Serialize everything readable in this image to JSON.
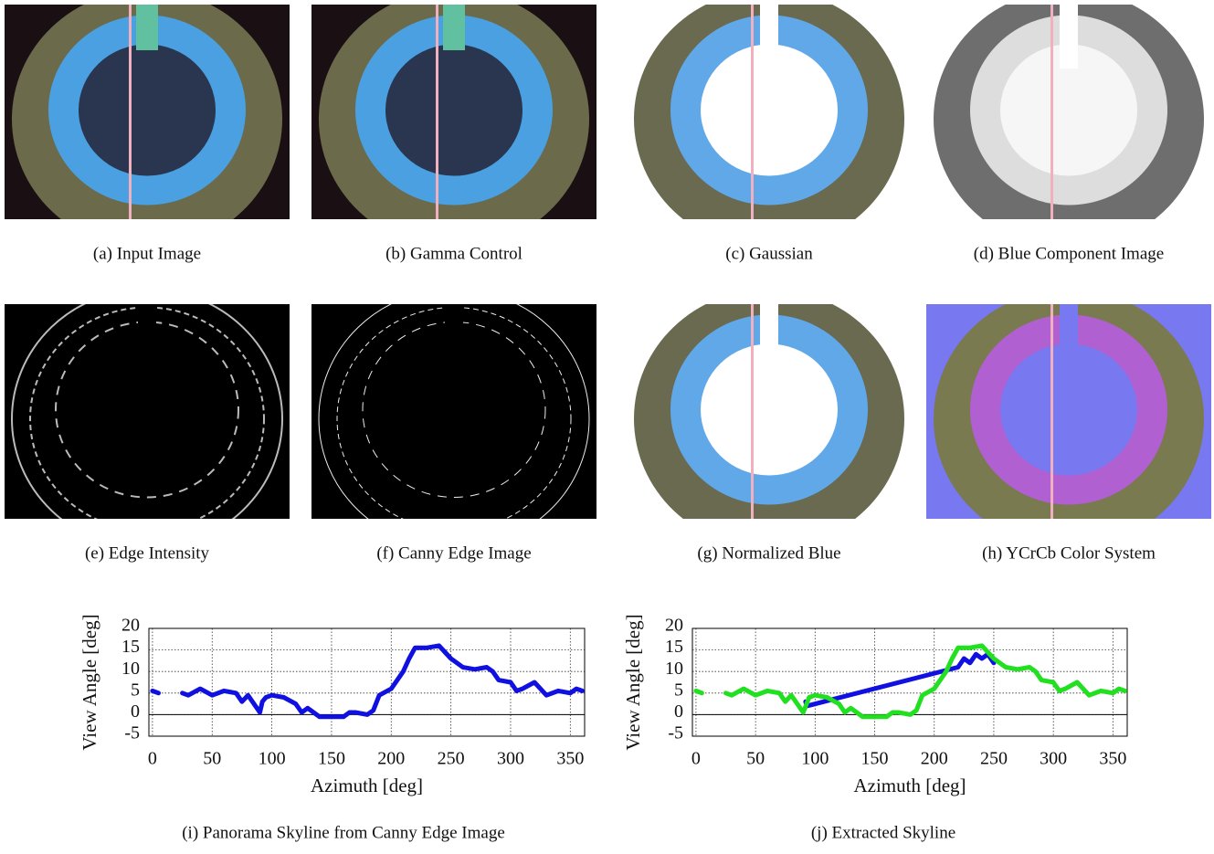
{
  "figures": [
    {
      "caption": "(a) Input Image"
    },
    {
      "caption": "(b) Gamma Control"
    },
    {
      "caption": "(c) Gaussian"
    },
    {
      "caption": "(d) Blue Component Image"
    },
    {
      "caption": "(e) Edge Intensity"
    },
    {
      "caption": "(f) Canny Edge Image"
    },
    {
      "caption": "(g) Normalized Blue"
    },
    {
      "caption": "(h) YCrCb Color System"
    }
  ],
  "chart_data": [
    {
      "type": "scatter",
      "caption": "(i) Panorama Skyline from Canny Edge Image",
      "x_label": "Azimuth [deg]",
      "y_label": "View Angle [deg]",
      "xlim": [
        -3,
        362
      ],
      "ylim": [
        -5,
        20
      ],
      "xticks": [
        0,
        50,
        100,
        150,
        200,
        250,
        300,
        350
      ],
      "yticks": [
        -5,
        0,
        5,
        10,
        15,
        20
      ],
      "grid": true,
      "series": [
        {
          "color": "#1010e0",
          "x": [
            0,
            5,
            15,
            25,
            30,
            40,
            50,
            60,
            70,
            75,
            80,
            90,
            92,
            95,
            100,
            110,
            120,
            125,
            130,
            140,
            150,
            160,
            165,
            170,
            180,
            185,
            190,
            200,
            210,
            215,
            220,
            230,
            240,
            245,
            250,
            260,
            270,
            280,
            285,
            290,
            300,
            305,
            310,
            320,
            330,
            340,
            350,
            355,
            360
          ],
          "values": [
            5.5,
            5,
            null,
            5,
            4.5,
            6,
            4.5,
            5.5,
            5,
            3,
            4.5,
            0.5,
            3,
            4,
            4.5,
            4,
            2.5,
            0.5,
            1.5,
            -0.5,
            -0.5,
            -0.5,
            0.5,
            0.5,
            0,
            1,
            4.5,
            6,
            10,
            13,
            15.5,
            15.5,
            16,
            14.5,
            13,
            11,
            10.5,
            11,
            10,
            8,
            7.5,
            5.5,
            6,
            7.5,
            4.5,
            5.5,
            5,
            6,
            5.5
          ]
        }
      ]
    },
    {
      "type": "scatter",
      "caption": "(j) Extracted Skyline",
      "x_label": "Azimuth [deg]",
      "y_label": "View Angle [deg]",
      "xlim": [
        -3,
        362
      ],
      "ylim": [
        -5,
        20
      ],
      "xticks": [
        0,
        50,
        100,
        150,
        200,
        250,
        300,
        350
      ],
      "yticks": [
        -5,
        0,
        5,
        10,
        15,
        20
      ],
      "grid": true,
      "series": [
        {
          "color": "#1010e0",
          "x": [
            92,
            93,
            220,
            225,
            230,
            235,
            240,
            245,
            250
          ],
          "values": [
            3,
            2,
            11,
            13,
            12,
            14,
            13,
            14,
            12
          ]
        },
        {
          "color": "#20e020",
          "x": [
            0,
            5,
            15,
            25,
            30,
            40,
            50,
            60,
            70,
            75,
            80,
            90,
            95,
            100,
            110,
            120,
            125,
            130,
            140,
            150,
            160,
            165,
            170,
            180,
            185,
            190,
            200,
            210,
            215,
            220,
            230,
            240,
            245,
            250,
            260,
            270,
            280,
            285,
            290,
            300,
            305,
            310,
            320,
            330,
            340,
            350,
            355,
            360
          ],
          "values": [
            5.5,
            5,
            null,
            5,
            4.5,
            6,
            4.5,
            5.5,
            5,
            3,
            4.5,
            0.5,
            4,
            4.5,
            4,
            2.5,
            0.5,
            1.5,
            -0.5,
            -0.5,
            -0.5,
            0.5,
            0.5,
            0,
            1,
            4.5,
            6,
            10,
            13,
            15.5,
            15.5,
            16,
            14.5,
            13,
            11,
            10.5,
            11,
            10,
            8,
            7.5,
            5.5,
            6,
            7.5,
            4.5,
            5.5,
            5,
            6,
            5.5
          ]
        }
      ]
    }
  ]
}
